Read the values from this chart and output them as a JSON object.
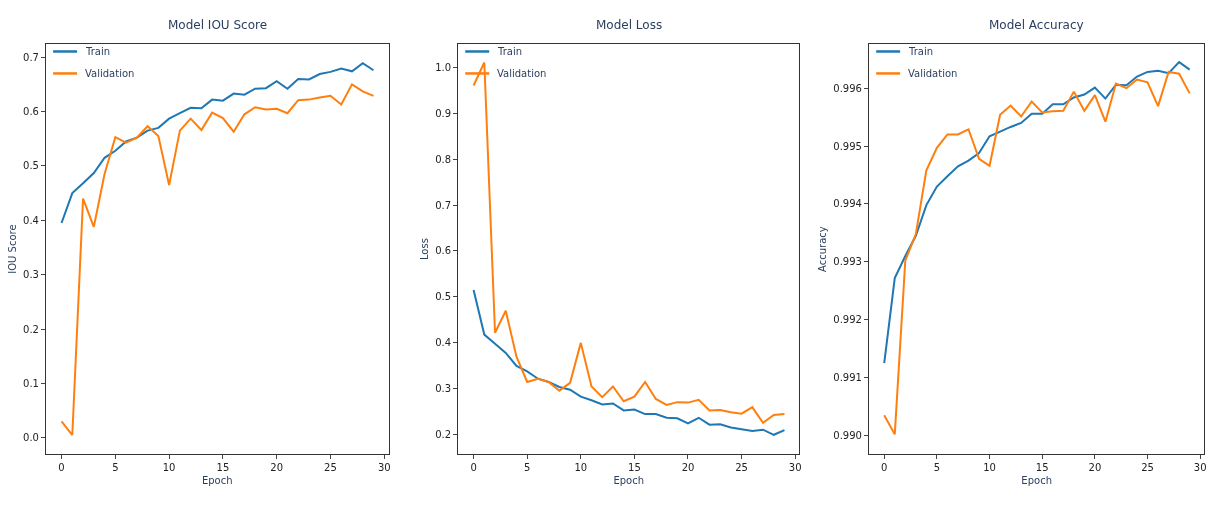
{
  "chart_data": [
    {
      "type": "line",
      "title": "Model IOU Score",
      "xlabel": "Epoch",
      "ylabel": "IOU Score",
      "x": [
        0,
        1,
        2,
        3,
        4,
        5,
        6,
        7,
        8,
        9,
        10,
        11,
        12,
        13,
        14,
        15,
        16,
        17,
        18,
        19,
        20,
        21,
        22,
        23,
        24,
        25,
        26,
        27,
        28,
        29
      ],
      "series": [
        {
          "name": "Train",
          "color": "#1f77b4",
          "values": [
            0.395,
            0.45,
            0.468,
            0.487,
            0.515,
            0.528,
            0.545,
            0.552,
            0.565,
            0.57,
            0.587,
            0.597,
            0.607,
            0.606,
            0.622,
            0.62,
            0.633,
            0.631,
            0.642,
            0.643,
            0.656,
            0.642,
            0.66,
            0.659,
            0.669,
            0.673,
            0.679,
            0.674,
            0.689,
            0.676
          ]
        },
        {
          "name": "Validation",
          "color": "#ff7f0e",
          "values": [
            0.03,
            0.005,
            0.44,
            0.388,
            0.485,
            0.553,
            0.543,
            0.552,
            0.573,
            0.555,
            0.465,
            0.565,
            0.587,
            0.566,
            0.598,
            0.588,
            0.563,
            0.595,
            0.608,
            0.604,
            0.605,
            0.597,
            0.621,
            0.622,
            0.626,
            0.629,
            0.613,
            0.65,
            0.637,
            0.629
          ]
        }
      ],
      "xlim": [
        -1.45,
        30.4
      ],
      "xticks": [
        0,
        5,
        10,
        15,
        20,
        25,
        30
      ],
      "ylim": [
        -0.03,
        0.724
      ],
      "yticks": [
        {
          "value": 0,
          "label": "0.0"
        },
        0.1,
        0.2,
        0.3,
        0.4,
        0.5,
        0.6,
        0.7
      ],
      "legend": "top left",
      "line_style": "solid"
    },
    {
      "type": "line",
      "title": "Model Loss",
      "xlabel": "Epoch",
      "ylabel": "Loss",
      "x": [
        0,
        1,
        2,
        3,
        4,
        5,
        6,
        7,
        8,
        9,
        10,
        11,
        12,
        13,
        14,
        15,
        16,
        17,
        18,
        19,
        20,
        21,
        22,
        23,
        24,
        25,
        26,
        27,
        28,
        29
      ],
      "series": [
        {
          "name": "Train",
          "color": "#1f77b4",
          "values": [
            0.515,
            0.418,
            0.398,
            0.378,
            0.35,
            0.338,
            0.322,
            0.315,
            0.304,
            0.298,
            0.283,
            0.275,
            0.266,
            0.268,
            0.253,
            0.255,
            0.245,
            0.245,
            0.237,
            0.236,
            0.225,
            0.237,
            0.222,
            0.223,
            0.216,
            0.212,
            0.208,
            0.211,
            0.2,
            0.21
          ]
        },
        {
          "name": "Validation",
          "color": "#ff7f0e",
          "values": [
            0.96,
            1.01,
            0.422,
            0.47,
            0.37,
            0.315,
            0.322,
            0.315,
            0.296,
            0.313,
            0.4,
            0.305,
            0.282,
            0.305,
            0.273,
            0.283,
            0.315,
            0.278,
            0.265,
            0.271,
            0.27,
            0.276,
            0.253,
            0.254,
            0.249,
            0.246,
            0.26,
            0.226,
            0.243,
            0.245
          ]
        }
      ],
      "xlim": [
        -1.45,
        30.4
      ],
      "xticks": [
        0,
        5,
        10,
        15,
        20,
        25,
        30
      ],
      "ylim": [
        0.158,
        1.05
      ],
      "yticks": [
        0.2,
        0.3,
        0.4,
        0.5,
        0.6,
        0.7,
        0.8,
        0.9,
        {
          "value": 1,
          "label": "1.0"
        }
      ],
      "legend": "top left",
      "line_style": "solid"
    },
    {
      "type": "line",
      "title": "Model Accuracy",
      "xlabel": "Epoch",
      "ylabel": "Accuracy",
      "x": [
        0,
        1,
        2,
        3,
        4,
        5,
        6,
        7,
        8,
        9,
        10,
        11,
        12,
        13,
        14,
        15,
        16,
        17,
        18,
        19,
        20,
        21,
        22,
        23,
        24,
        25,
        26,
        27,
        28,
        29
      ],
      "series": [
        {
          "name": "Train",
          "color": "#1f77b4",
          "values": [
            0.99125,
            0.99272,
            0.9931,
            0.99345,
            0.99398,
            0.9943,
            0.99448,
            0.99465,
            0.99475,
            0.99488,
            0.99517,
            0.99525,
            0.99533,
            0.9954,
            0.99556,
            0.99556,
            0.99572,
            0.99572,
            0.99584,
            0.99589,
            0.99601,
            0.99582,
            0.99606,
            0.99605,
            0.9962,
            0.99628,
            0.9963,
            0.99626,
            0.99645,
            0.99632
          ]
        },
        {
          "name": "Validation",
          "color": "#ff7f0e",
          "values": [
            0.99035,
            0.99002,
            0.99302,
            0.99348,
            0.99458,
            0.99497,
            0.9952,
            0.9952,
            0.99529,
            0.99478,
            0.99466,
            0.99554,
            0.9957,
            0.99551,
            0.99577,
            0.99558,
            0.9956,
            0.99561,
            0.99594,
            0.99561,
            0.99588,
            0.99542,
            0.99608,
            0.996,
            0.99615,
            0.9961,
            0.99569,
            0.99628,
            0.99625,
            0.99591
          ]
        }
      ],
      "xlim": [
        -1.45,
        30.4
      ],
      "xticks": [
        0,
        5,
        10,
        15,
        20,
        25,
        30
      ],
      "ylim": [
        0.98968,
        0.99676
      ],
      "yticks": [
        {
          "value": 0.99,
          "label": "0.990"
        },
        0.991,
        0.992,
        0.993,
        0.994,
        0.995,
        0.996
      ],
      "legend": "top left",
      "line_style": "solid"
    }
  ]
}
